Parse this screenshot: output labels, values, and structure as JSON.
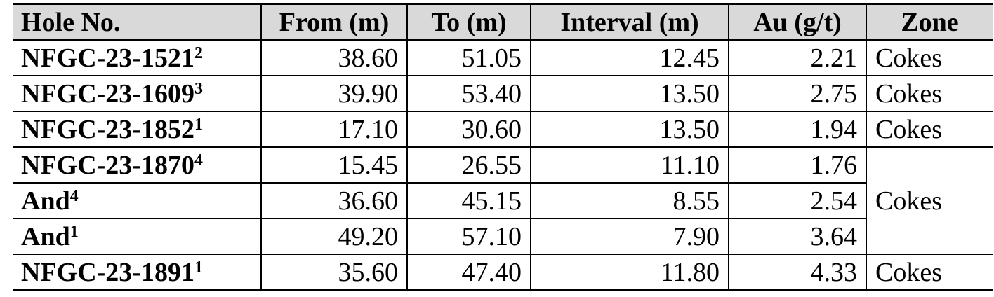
{
  "table": {
    "header": [
      "Hole No.",
      "From (m)",
      "To (m)",
      "Interval (m)",
      "Au (g/t)",
      "Zone"
    ],
    "rows": [
      {
        "hole": "NFGC-23-1521",
        "note": "2",
        "from": "38.60",
        "to": "51.05",
        "interval": "12.45",
        "au": "2.21",
        "zone": "Cokes"
      },
      {
        "hole": "NFGC-23-1609",
        "note": "3",
        "from": "39.90",
        "to": "53.40",
        "interval": "13.50",
        "au": "2.75",
        "zone": "Cokes"
      },
      {
        "hole": "NFGC-23-1852",
        "note": "1",
        "from": "17.10",
        "to": "30.60",
        "interval": "13.50",
        "au": "1.94",
        "zone": "Cokes"
      },
      {
        "hole": "NFGC-23-1870",
        "note": "4",
        "from": "15.45",
        "to": "26.55",
        "interval": "11.10",
        "au": "1.76",
        "zone": "Cokes"
      },
      {
        "hole": "And",
        "note": "4",
        "from": "36.60",
        "to": "45.15",
        "interval": "8.55",
        "au": "2.54"
      },
      {
        "hole": "And",
        "note": "1",
        "from": "49.20",
        "to": "57.10",
        "interval": "7.90",
        "au": "3.64"
      },
      {
        "hole": "NFGC-23-1891",
        "note": "1",
        "from": "35.60",
        "to": "47.40",
        "interval": "11.80",
        "au": "4.33",
        "zone": "Cokes"
      }
    ]
  }
}
